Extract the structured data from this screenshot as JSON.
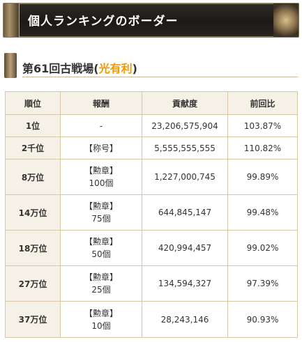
{
  "header": {
    "title": "個人ランキングのボーダー"
  },
  "subheading": {
    "prefix": "第61回古戦場(",
    "highlight": "光有利",
    "suffix": ")"
  },
  "colors": {
    "banner_bg": "#1c1a17",
    "highlight": "#f39800",
    "up": "#e40000",
    "down": "#1a2fd0",
    "border": "#d7c7a4"
  },
  "table": {
    "headers": {
      "rank": "順位",
      "reward": "報酬",
      "contribution": "貢献度",
      "ratio": "前回比"
    },
    "rows": [
      {
        "rank": "1位",
        "reward_line1": "-",
        "reward_line2": "",
        "contribution": "23,206,575,904",
        "ratio": "103.87%",
        "trend": "up"
      },
      {
        "rank": "2千位",
        "reward_line1": "【称号】",
        "reward_line2": "",
        "contribution": "5,555,555,555",
        "ratio": "110.82%",
        "trend": "up"
      },
      {
        "rank": "8万位",
        "reward_line1": "【勲章】",
        "reward_line2": "100個",
        "contribution": "1,227,000,745",
        "ratio": "99.89%",
        "trend": "down"
      },
      {
        "rank": "14万位",
        "reward_line1": "【勲章】",
        "reward_line2": "75個",
        "contribution": "644,845,147",
        "ratio": "99.48%",
        "trend": "down"
      },
      {
        "rank": "18万位",
        "reward_line1": "【勲章】",
        "reward_line2": "50個",
        "contribution": "420,994,457",
        "ratio": "99.02%",
        "trend": "down"
      },
      {
        "rank": "27万位",
        "reward_line1": "【勲章】",
        "reward_line2": "25個",
        "contribution": "134,594,327",
        "ratio": "97.39%",
        "trend": "down"
      },
      {
        "rank": "37万位",
        "reward_line1": "【勲章】",
        "reward_line2": "10個",
        "contribution": "28,243,146",
        "ratio": "90.93%",
        "trend": "down"
      }
    ]
  }
}
